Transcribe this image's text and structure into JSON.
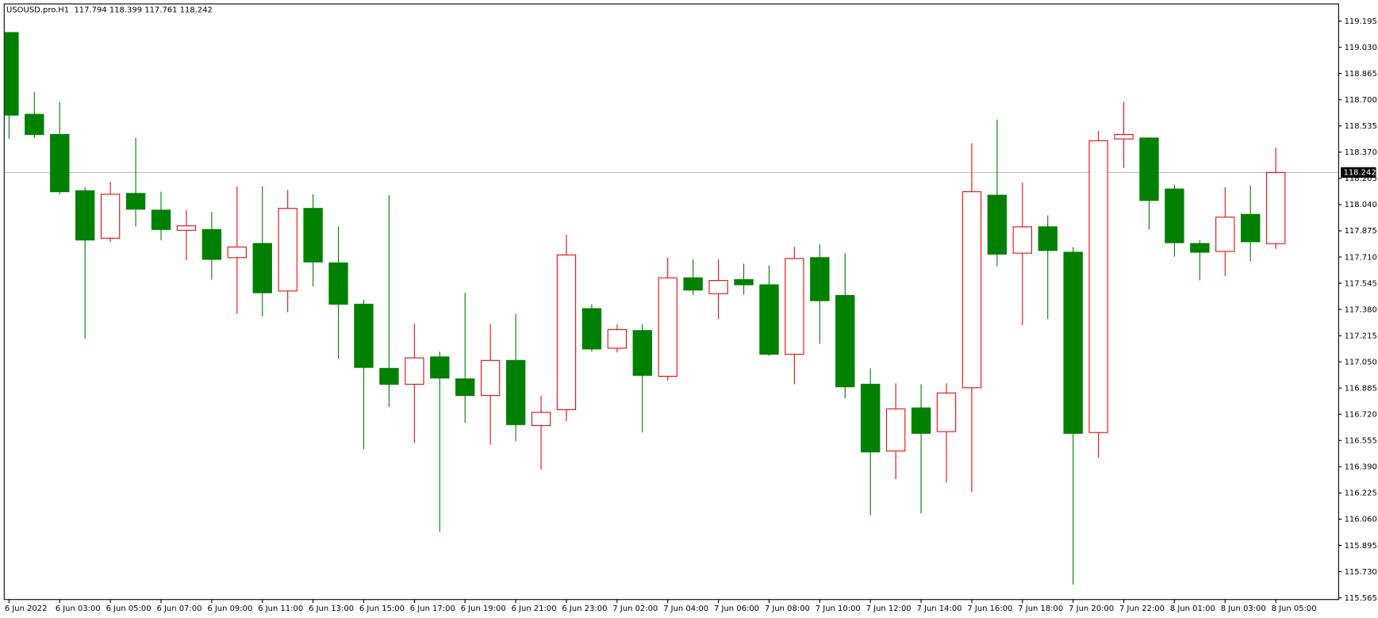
{
  "chart_data": {
    "type": "candlestick",
    "title": "USOUSD.pro.H1  117.794 118.399 117.761 118.242",
    "categories": [
      "6 Jun 2022",
      null,
      "6 Jun 03:00",
      null,
      "6 Jun 05:00",
      null,
      "6 Jun 07:00",
      null,
      "6 Jun 09:00",
      null,
      "6 Jun 11:00",
      null,
      "6 Jun 13:00",
      null,
      "6 Jun 15:00",
      null,
      "6 Jun 17:00",
      null,
      "6 Jun 19:00",
      null,
      "6 Jun 21:00",
      null,
      "6 Jun 23:00",
      null,
      "7 Jun 02:00",
      null,
      "7 Jun 04:00",
      null,
      "7 Jun 06:00",
      null,
      "7 Jun 08:00",
      null,
      "7 Jun 10:00",
      null,
      "7 Jun 12:00",
      null,
      "7 Jun 14:00",
      null,
      "7 Jun 16:00",
      null,
      "7 Jun 18:00",
      null,
      "7 Jun 20:00",
      null,
      "7 Jun 22:00",
      null,
      "8 Jun 01:00",
      null,
      "8 Jun 03:00",
      null,
      "8 Jun 05:00"
    ],
    "open": [
      119.123,
      118.608,
      118.481,
      118.127,
      117.828,
      118.11,
      118.005,
      117.878,
      117.883,
      117.706,
      117.795,
      117.496,
      118.016,
      117.673,
      117.413,
      117.009,
      116.909,
      117.081,
      116.943,
      116.838,
      117.059,
      116.649,
      116.749,
      117.385,
      117.136,
      117.247,
      116.959,
      117.579,
      117.479,
      117.568,
      117.535,
      117.098,
      117.706,
      117.468,
      116.909,
      116.489,
      116.76,
      116.611,
      116.887,
      118.099,
      117.734,
      117.9,
      117.74,
      116.605,
      118.453,
      118.459,
      118.138,
      117.795,
      117.745,
      117.978,
      117.794
    ],
    "high": [
      119.123,
      118.747,
      118.686,
      118.149,
      118.182,
      118.459,
      118.121,
      118.005,
      117.994,
      118.155,
      118.155,
      118.132,
      118.105,
      117.9,
      117.441,
      118.099,
      117.291,
      117.114,
      117.485,
      117.286,
      117.352,
      116.838,
      117.85,
      117.413,
      117.286,
      117.286,
      117.706,
      117.695,
      117.695,
      117.668,
      117.657,
      117.773,
      117.789,
      117.734,
      117.009,
      116.915,
      116.909,
      116.915,
      118.426,
      118.575,
      118.177,
      117.972,
      117.773,
      118.503,
      118.686,
      118.464,
      118.166,
      117.817,
      118.149,
      118.16,
      118.399
    ],
    "low": [
      118.453,
      118.459,
      118.105,
      117.197,
      117.806,
      117.9,
      117.817,
      117.69,
      117.568,
      117.352,
      117.336,
      117.363,
      117.524,
      117.07,
      116.5,
      116.766,
      116.539,
      115.98,
      116.666,
      116.528,
      116.55,
      116.373,
      116.677,
      117.114,
      117.109,
      116.605,
      116.932,
      117.469,
      117.319,
      117.474,
      117.087,
      116.909,
      117.164,
      116.821,
      116.085,
      116.312,
      116.096,
      116.29,
      116.229,
      117.651,
      117.28,
      117.319,
      115.648,
      116.445,
      118.271,
      117.883,
      117.712,
      117.563,
      117.59,
      117.684,
      117.761
    ],
    "close": [
      118.603,
      118.481,
      118.121,
      117.817,
      118.105,
      118.011,
      117.883,
      117.906,
      117.695,
      117.773,
      117.485,
      118.016,
      117.679,
      117.413,
      117.015,
      116.909,
      117.075,
      116.948,
      116.838,
      117.059,
      116.655,
      116.732,
      117.723,
      117.131,
      117.253,
      116.965,
      117.579,
      117.502,
      117.562,
      117.535,
      117.098,
      117.701,
      117.435,
      116.893,
      116.483,
      116.754,
      116.6,
      116.854,
      118.121,
      117.728,
      117.9,
      117.751,
      116.6,
      118.442,
      118.481,
      118.066,
      117.8,
      117.74,
      117.961,
      117.806,
      118.242
    ],
    "bull_color": "#e01010",
    "bear_color": "#008000",
    "current_price": 118.242,
    "ylim": [
      115.554,
      119.3
    ],
    "yticks": [
      115.565,
      {
        "value": 115.73,
        "label": "115.730"
      },
      115.895,
      {
        "value": 116.06,
        "label": "116.060"
      },
      116.225,
      {
        "value": 116.39,
        "label": "116.390"
      },
      116.555,
      {
        "value": 116.72,
        "label": "116.720"
      },
      116.885,
      {
        "value": 117.05,
        "label": "117.050"
      },
      117.215,
      {
        "value": 117.38,
        "label": "117.380"
      },
      117.545,
      {
        "value": 117.71,
        "label": "117.710"
      },
      117.875,
      {
        "value": 118.04,
        "label": "118.040"
      },
      118.205,
      {
        "value": 118.37,
        "label": "118.370"
      },
      118.535,
      {
        "value": 118.7,
        "label": "118.700"
      },
      118.865,
      {
        "value": 119.03,
        "label": "119.030"
      },
      119.195
    ]
  }
}
